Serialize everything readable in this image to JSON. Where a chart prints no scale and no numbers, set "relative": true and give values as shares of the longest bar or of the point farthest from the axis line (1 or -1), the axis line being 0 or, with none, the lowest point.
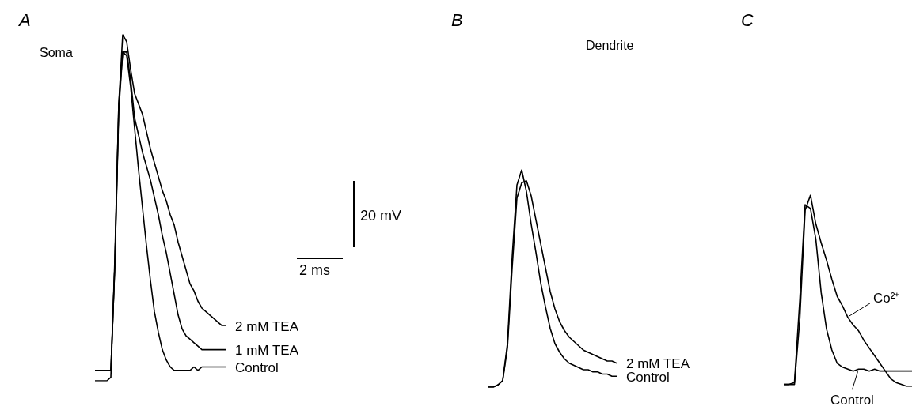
{
  "chart_data": [
    {
      "type": "line",
      "title": "A",
      "subtitle": "Soma",
      "relative": true,
      "marker": "none",
      "line_style": "solid",
      "annotations": [
        "20 mV",
        "2 ms"
      ],
      "categories": [
        null,
        null,
        null,
        null,
        null,
        null,
        null,
        null,
        null,
        null,
        null,
        null,
        null,
        null,
        null,
        null,
        null,
        null,
        null,
        null,
        null,
        null,
        null,
        null,
        null,
        null,
        null,
        null,
        null,
        null,
        null,
        null,
        null,
        null
      ],
      "series": [
        {
          "name": "2 mM TEA",
          "color": "#000000",
          "values": [
            0.03,
            0.03,
            0.03,
            0.03,
            0.03,
            0.33,
            0.8,
            1,
            0.98,
            0.9,
            0.83,
            0.8,
            0.77,
            0.72,
            0.67,
            0.63,
            0.59,
            0.55,
            0.52,
            0.48,
            0.45,
            0.4,
            0.36,
            0.32,
            0.28,
            0.26,
            0.23,
            0.21,
            0.2,
            0.19,
            0.18,
            0.17,
            0.16,
            0.16
          ]
        },
        {
          "name": "1 mM TEA",
          "color": "#000000",
          "values": [
            0.03,
            0.03,
            0.03,
            0.03,
            0.03,
            0.33,
            0.78,
            0.95,
            0.95,
            0.87,
            0.76,
            0.71,
            0.66,
            0.62,
            0.58,
            0.53,
            0.48,
            0.42,
            0.37,
            0.31,
            0.25,
            0.19,
            0.15,
            0.13,
            0.12,
            0.11,
            0.1,
            0.09,
            0.09,
            0.09,
            0.09,
            0.09,
            0.09,
            0.09
          ]
        },
        {
          "name": "Control",
          "color": "#000000",
          "values": [
            0,
            0,
            0,
            0,
            0.01,
            0.35,
            0.8,
            0.95,
            0.94,
            0.85,
            0.73,
            0.61,
            0.5,
            0.39,
            0.29,
            0.2,
            0.14,
            0.09,
            0.06,
            0.04,
            0.03,
            0.03,
            0.03,
            0.03,
            0.03,
            0.04,
            0.03,
            0.04,
            0.04,
            0.04,
            0.04,
            0.04,
            0.04,
            0.04
          ]
        }
      ]
    },
    {
      "type": "line",
      "title": "B",
      "subtitle": "Dendrite",
      "relative": true,
      "marker": "none",
      "line_style": "solid",
      "categories": [
        null,
        null,
        null,
        null,
        null,
        null,
        null,
        null,
        null,
        null,
        null,
        null,
        null,
        null,
        null,
        null,
        null,
        null,
        null,
        null,
        null,
        null,
        null,
        null,
        null,
        null,
        null,
        null
      ],
      "series": [
        {
          "name": "2 mM TEA",
          "color": "#000000",
          "values": [
            0,
            0,
            0.01,
            0.03,
            0.18,
            0.55,
            0.87,
            0.94,
            0.95,
            0.88,
            0.77,
            0.66,
            0.55,
            0.44,
            0.36,
            0.3,
            0.26,
            0.23,
            0.21,
            0.19,
            0.17,
            0.16,
            0.15,
            0.14,
            0.13,
            0.12,
            0.12,
            0.11
          ]
        },
        {
          "name": "Control",
          "color": "#000000",
          "values": [
            0,
            0,
            0.01,
            0.03,
            0.2,
            0.6,
            0.93,
            1,
            0.9,
            0.75,
            0.62,
            0.48,
            0.37,
            0.27,
            0.2,
            0.16,
            0.13,
            0.11,
            0.1,
            0.09,
            0.08,
            0.08,
            0.07,
            0.07,
            0.06,
            0.06,
            0.05,
            0.05
          ]
        }
      ]
    },
    {
      "type": "line",
      "title": "C",
      "relative": true,
      "marker": "none",
      "line_style": "solid",
      "categories": [
        null,
        null,
        null,
        null,
        null,
        null,
        null,
        null,
        null,
        null,
        null,
        null,
        null,
        null,
        null,
        null,
        null,
        null,
        null,
        null,
        null,
        null,
        null,
        null,
        null
      ],
      "series": [
        {
          "name": "Co²⁺",
          "color": "#000000",
          "values": [
            0.01,
            0.01,
            0.01,
            0.35,
            0.92,
            1,
            0.85,
            0.75,
            0.66,
            0.56,
            0.47,
            0.42,
            0.36,
            0.32,
            0.29,
            0.24,
            0.2,
            0.16,
            0.12,
            0.08,
            0.04,
            0.02,
            0.01,
            0,
            0
          ]
        },
        {
          "name": "Control",
          "color": "#000000",
          "values": [
            0.01,
            0.01,
            0.02,
            0.45,
            0.95,
            0.93,
            0.77,
            0.49,
            0.3,
            0.19,
            0.12,
            0.1,
            0.09,
            0.08,
            0.09,
            0.09,
            0.08,
            0.09,
            0.08,
            0.08,
            0.08,
            0.08,
            0.08,
            0.08,
            0.08
          ]
        }
      ]
    }
  ]
}
